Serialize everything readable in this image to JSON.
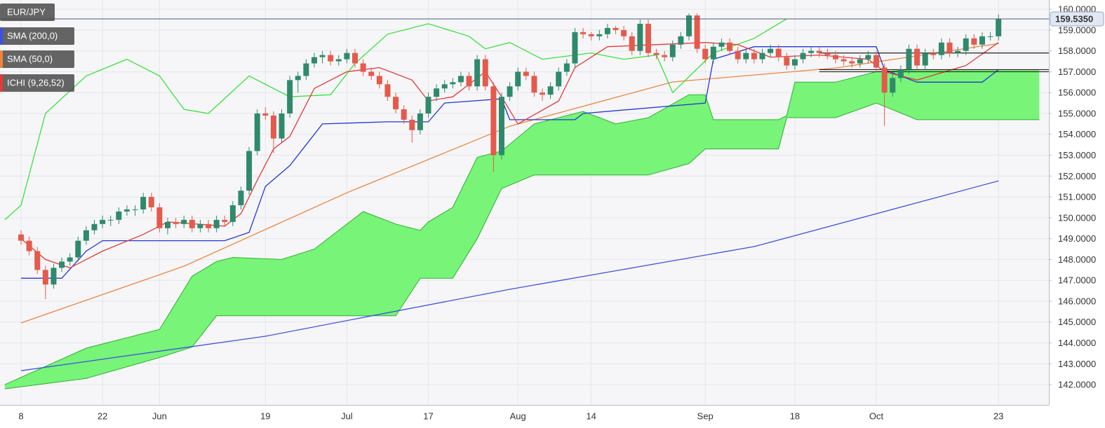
{
  "chart_data": {
    "type": "candlestick",
    "name": "EUR/JPY",
    "up_color": "#2f8a6c",
    "down_color": "#e45a4c",
    "grid": true,
    "ylim": [
      141.03,
      160.44
    ],
    "yticks": [
      {
        "value": 142,
        "label": "142.0000"
      },
      {
        "value": 143,
        "label": "143.0000"
      },
      {
        "value": 144,
        "label": "144.0000"
      },
      {
        "value": 145,
        "label": "145.0000"
      },
      {
        "value": 146,
        "label": "146.0000"
      },
      {
        "value": 147,
        "label": "147.0000"
      },
      {
        "value": 148,
        "label": "148.0000"
      },
      {
        "value": 149,
        "label": "149.0000"
      },
      {
        "value": 150,
        "label": "150.0000"
      },
      {
        "value": 151,
        "label": "151.0000"
      },
      {
        "value": 152,
        "label": "152.0000"
      },
      {
        "value": 153,
        "label": "153.0000"
      },
      {
        "value": 154,
        "label": "154.0000"
      },
      {
        "value": 155,
        "label": "155.0000"
      },
      {
        "value": 156,
        "label": "156.0000"
      },
      {
        "value": 157,
        "label": "157.0000"
      },
      {
        "value": 158,
        "label": "158.0000"
      },
      {
        "value": 159,
        "label": "159.0000"
      },
      {
        "value": 160,
        "label": "160.0000"
      }
    ],
    "last_price_label": "159.5350",
    "categories": [
      "8",
      null,
      null,
      null,
      null,
      null,
      null,
      null,
      null,
      null,
      "22",
      null,
      null,
      null,
      null,
      null,
      null,
      "Jun",
      null,
      null,
      null,
      null,
      null,
      null,
      null,
      null,
      null,
      null,
      null,
      null,
      "19",
      null,
      null,
      null,
      null,
      null,
      null,
      null,
      null,
      null,
      "Jul",
      null,
      null,
      null,
      null,
      null,
      null,
      null,
      null,
      null,
      "17",
      null,
      null,
      null,
      null,
      null,
      null,
      null,
      null,
      null,
      null,
      "Aug",
      null,
      null,
      null,
      null,
      null,
      null,
      null,
      null,
      "14",
      null,
      null,
      null,
      null,
      null,
      null,
      null,
      null,
      null,
      null,
      null,
      null,
      null,
      "Sep",
      null,
      null,
      null,
      null,
      null,
      null,
      null,
      null,
      null,
      null,
      "18",
      null,
      null,
      null,
      null,
      null,
      null,
      null,
      null,
      null,
      "Oct",
      null,
      null,
      null,
      null,
      null,
      null,
      null,
      null,
      null,
      null,
      null,
      null,
      null,
      null,
      "23"
    ],
    "ohlc": [
      [
        149.2,
        149.4,
        148.7,
        148.9
      ],
      [
        148.9,
        149.1,
        148.2,
        148.4
      ],
      [
        148.4,
        148.6,
        147.3,
        147.5
      ],
      [
        147.5,
        147.7,
        146.1,
        146.8
      ],
      [
        146.8,
        147.8,
        146.6,
        147.6
      ],
      [
        147.6,
        148.1,
        147.4,
        147.9
      ],
      [
        147.9,
        148.3,
        147.7,
        148.1
      ],
      [
        148.1,
        149.1,
        147.9,
        148.9
      ],
      [
        148.9,
        149.6,
        148.7,
        149.4
      ],
      [
        149.4,
        149.9,
        149.2,
        149.7
      ],
      [
        149.7,
        150.1,
        149.5,
        149.9
      ],
      [
        149.9,
        150.1,
        149.6,
        149.9
      ],
      [
        149.9,
        150.5,
        149.7,
        150.3
      ],
      [
        150.3,
        150.6,
        150.1,
        150.4
      ],
      [
        150.4,
        150.6,
        150.1,
        150.4
      ],
      [
        150.4,
        151.2,
        150.2,
        151.0
      ],
      [
        151.0,
        151.2,
        150.3,
        150.5
      ],
      [
        150.5,
        150.7,
        149.3,
        149.5
      ],
      [
        149.5,
        150.0,
        149.2,
        149.8
      ],
      [
        149.8,
        150.0,
        149.5,
        149.7
      ],
      [
        149.7,
        150.1,
        149.5,
        149.9
      ],
      [
        149.9,
        150.1,
        149.3,
        149.5
      ],
      [
        149.5,
        149.9,
        149.3,
        149.7
      ],
      [
        149.7,
        149.9,
        149.3,
        149.5
      ],
      [
        149.5,
        150.1,
        149.3,
        149.9
      ],
      [
        149.9,
        150.1,
        149.6,
        149.8
      ],
      [
        149.8,
        150.8,
        149.6,
        150.6
      ],
      [
        150.6,
        151.5,
        150.4,
        151.3
      ],
      [
        151.3,
        153.4,
        151.1,
        153.2
      ],
      [
        153.2,
        155.2,
        153.0,
        155.0
      ],
      [
        155.0,
        155.3,
        154.7,
        154.9
      ],
      [
        154.9,
        155.1,
        153.1,
        153.8
      ],
      [
        153.8,
        155.2,
        153.6,
        155.0
      ],
      [
        155.0,
        156.8,
        154.8,
        156.6
      ],
      [
        156.6,
        157.0,
        156.0,
        156.8
      ],
      [
        156.8,
        157.6,
        156.6,
        157.4
      ],
      [
        157.4,
        157.9,
        157.2,
        157.7
      ],
      [
        157.7,
        158.0,
        157.4,
        157.8
      ],
      [
        157.8,
        158.0,
        157.3,
        157.5
      ],
      [
        157.5,
        157.8,
        157.3,
        157.6
      ],
      [
        157.6,
        158.1,
        157.4,
        157.9
      ],
      [
        157.9,
        158.1,
        157.2,
        157.4
      ],
      [
        157.4,
        157.6,
        156.8,
        157.0
      ],
      [
        157.0,
        157.2,
        156.6,
        156.8
      ],
      [
        156.8,
        157.0,
        156.2,
        156.4
      ],
      [
        156.4,
        156.6,
        155.6,
        155.8
      ],
      [
        155.8,
        156.0,
        155.0,
        155.2
      ],
      [
        155.2,
        155.4,
        154.5,
        154.7
      ],
      [
        154.7,
        154.9,
        153.6,
        154.2
      ],
      [
        154.2,
        155.2,
        154.0,
        155.0
      ],
      [
        155.0,
        156.0,
        154.8,
        155.8
      ],
      [
        155.8,
        156.4,
        155.6,
        156.2
      ],
      [
        156.2,
        156.6,
        156.0,
        156.4
      ],
      [
        156.4,
        156.7,
        156.2,
        156.5
      ],
      [
        156.5,
        157.0,
        156.3,
        156.8
      ],
      [
        156.8,
        157.0,
        156.1,
        156.3
      ],
      [
        156.3,
        157.8,
        156.1,
        157.6
      ],
      [
        157.6,
        157.8,
        156.1,
        156.3
      ],
      [
        156.3,
        156.5,
        152.2,
        153.0
      ],
      [
        153.0,
        156.0,
        152.8,
        155.8
      ],
      [
        155.8,
        156.5,
        155.6,
        156.3
      ],
      [
        156.3,
        157.2,
        156.1,
        157.0
      ],
      [
        157.0,
        157.2,
        156.6,
        156.8
      ],
      [
        156.8,
        157.0,
        155.8,
        156.0
      ],
      [
        156.0,
        156.2,
        155.6,
        155.9
      ],
      [
        155.9,
        156.5,
        155.7,
        156.3
      ],
      [
        156.3,
        157.2,
        156.1,
        157.0
      ],
      [
        157.0,
        157.6,
        156.8,
        157.4
      ],
      [
        157.4,
        159.1,
        157.2,
        158.9
      ],
      [
        158.9,
        159.1,
        158.6,
        158.8
      ],
      [
        158.8,
        158.9,
        158.5,
        158.7
      ],
      [
        158.7,
        159.0,
        158.5,
        158.8
      ],
      [
        158.8,
        159.3,
        158.6,
        159.1
      ],
      [
        159.1,
        159.2,
        158.8,
        159.0
      ],
      [
        159.0,
        159.2,
        158.5,
        158.7
      ],
      [
        158.7,
        158.9,
        157.8,
        158.0
      ],
      [
        158.0,
        159.5,
        157.8,
        159.3
      ],
      [
        159.3,
        159.5,
        157.7,
        157.9
      ],
      [
        157.9,
        158.1,
        157.6,
        157.8
      ],
      [
        157.8,
        158.0,
        157.5,
        157.7
      ],
      [
        157.7,
        158.5,
        157.5,
        158.3
      ],
      [
        158.3,
        158.9,
        158.1,
        158.7
      ],
      [
        158.7,
        159.8,
        158.5,
        159.7
      ],
      [
        159.7,
        159.8,
        157.9,
        158.1
      ],
      [
        158.1,
        158.3,
        157.4,
        157.6
      ],
      [
        157.6,
        158.4,
        157.4,
        158.2
      ],
      [
        158.2,
        158.6,
        158.0,
        158.4
      ],
      [
        158.4,
        158.6,
        157.8,
        158.0
      ],
      [
        158.0,
        158.2,
        157.4,
        157.6
      ],
      [
        157.6,
        158.1,
        157.4,
        157.9
      ],
      [
        157.9,
        158.1,
        157.4,
        157.6
      ],
      [
        157.6,
        158.1,
        157.4,
        157.9
      ],
      [
        157.9,
        158.3,
        157.7,
        158.1
      ],
      [
        158.1,
        158.3,
        157.5,
        157.7
      ],
      [
        157.7,
        157.9,
        157.1,
        157.3
      ],
      [
        157.3,
        157.8,
        157.1,
        157.6
      ],
      [
        157.6,
        158.1,
        157.4,
        157.9
      ],
      [
        157.9,
        158.2,
        157.7,
        158.0
      ],
      [
        158.0,
        158.2,
        157.7,
        157.9
      ],
      [
        157.9,
        158.1,
        157.6,
        157.8
      ],
      [
        157.8,
        158.0,
        157.4,
        157.6
      ],
      [
        157.6,
        157.8,
        157.3,
        157.5
      ],
      [
        157.5,
        157.7,
        157.2,
        157.4
      ],
      [
        157.4,
        157.8,
        157.2,
        157.6
      ],
      [
        157.6,
        158.0,
        157.4,
        157.8
      ],
      [
        157.8,
        158.0,
        157.0,
        157.2
      ],
      [
        157.2,
        157.4,
        154.4,
        156.0
      ],
      [
        156.0,
        156.9,
        155.8,
        156.7
      ],
      [
        156.7,
        157.3,
        156.5,
        157.1
      ],
      [
        157.1,
        158.3,
        156.9,
        158.1
      ],
      [
        158.1,
        158.3,
        157.1,
        157.3
      ],
      [
        157.3,
        158.1,
        157.1,
        157.9
      ],
      [
        157.9,
        158.1,
        157.6,
        157.8
      ],
      [
        157.8,
        158.6,
        157.6,
        158.4
      ],
      [
        158.4,
        158.6,
        157.7,
        157.9
      ],
      [
        157.9,
        158.2,
        157.7,
        158.0
      ],
      [
        158.0,
        158.8,
        157.8,
        158.6
      ],
      [
        158.6,
        158.8,
        158.1,
        158.3
      ],
      [
        158.3,
        158.9,
        158.1,
        158.7
      ],
      [
        158.7,
        158.9,
        158.5,
        158.7
      ],
      [
        158.7,
        159.75,
        158.5,
        159.535
      ]
    ],
    "overlays": [
      {
        "name": "SMA (200,0)",
        "color": "#3d52e3",
        "x": [
          0,
          30,
          60,
          90,
          120
        ],
        "values": [
          142.67,
          144.32,
          146.57,
          148.62,
          151.77
        ]
      },
      {
        "name": "SMA (50,0)",
        "color": "#f0843a",
        "x": [
          0,
          20,
          40,
          60,
          80,
          100,
          120
        ],
        "values": [
          144.96,
          147.68,
          151.2,
          154.39,
          156.51,
          157.18,
          158.35
        ]
      }
    ],
    "ichimoku": {
      "name": "ICHI (9,26,52)",
      "color": "#e53935",
      "tenkan": {
        "color": "#e53935",
        "x": [
          0,
          3,
          6,
          10,
          15,
          18,
          25,
          27,
          29,
          31,
          33,
          36,
          40,
          44,
          48,
          50,
          53,
          57,
          59,
          61,
          66,
          68,
          72,
          78,
          84,
          88,
          92,
          98,
          104,
          106,
          110,
          116,
          120
        ],
        "values": [
          149.0,
          148.0,
          147.6,
          148.4,
          149.2,
          149.8,
          149.6,
          150.2,
          151.8,
          153.3,
          153.9,
          156.2,
          157.0,
          157.2,
          156.6,
          155.6,
          155.8,
          157.0,
          155.8,
          154.5,
          155.6,
          157.2,
          158.2,
          158.3,
          158.4,
          158.3,
          157.7,
          157.8,
          157.6,
          157.0,
          156.6,
          157.3,
          158.4
        ]
      },
      "kijun": {
        "color": "#2436d6",
        "x": [
          0,
          5,
          8,
          10,
          25,
          28,
          30,
          33,
          35,
          37,
          45,
          50,
          52,
          59,
          60,
          68,
          69,
          84,
          85,
          90,
          105,
          106,
          110,
          118,
          120
        ],
        "values": [
          147.1,
          147.1,
          148.4,
          148.9,
          148.9,
          149.3,
          151.5,
          152.5,
          153.5,
          154.5,
          154.6,
          154.6,
          155.5,
          155.7,
          154.7,
          154.7,
          155.0,
          155.5,
          157.6,
          158.2,
          158.2,
          157.1,
          156.5,
          156.5,
          157.1
        ]
      },
      "chikou": {
        "color": "#39e239",
        "x": [
          -2,
          0,
          3,
          8,
          13,
          17,
          20,
          23,
          28,
          33,
          38,
          41,
          45,
          50,
          55,
          57,
          60,
          64,
          70,
          74,
          78,
          80,
          85,
          90,
          94
        ],
        "values": [
          149.9,
          150.6,
          155.0,
          156.8,
          157.6,
          156.8,
          155.2,
          155.0,
          156.8,
          155.8,
          155.9,
          157.4,
          158.8,
          159.3,
          158.7,
          158.1,
          158.4,
          157.6,
          157.9,
          157.6,
          157.8,
          156.0,
          157.9,
          158.6,
          159.535
        ]
      },
      "cloud": {
        "color": "#78f478",
        "line_color": "#30b030",
        "x": [
          -2,
          8,
          17,
          21,
          24,
          26,
          32,
          36,
          42,
          46,
          49,
          50,
          53,
          56,
          59,
          63,
          69,
          73,
          77,
          82,
          84,
          85,
          93,
          94,
          95,
          100,
          105,
          110,
          125
        ],
        "span_a": [
          142.0,
          143.75,
          144.65,
          147.2,
          147.9,
          148.1,
          148.0,
          148.5,
          150.3,
          149.7,
          149.4,
          149.8,
          150.5,
          152.9,
          153.2,
          154.5,
          155.1,
          154.5,
          154.8,
          155.9,
          155.9,
          154.7,
          154.7,
          154.9,
          156.5,
          156.5,
          157.0,
          157.1,
          157.1
        ],
        "span_b": [
          141.8,
          142.3,
          143.3,
          143.8,
          145.3,
          145.3,
          145.3,
          145.3,
          145.3,
          145.3,
          147.1,
          147.1,
          147.1,
          149.0,
          151.4,
          152.05,
          152.05,
          152.05,
          152.05,
          152.6,
          153.3,
          153.3,
          153.3,
          154.8,
          154.8,
          154.8,
          155.5,
          154.7,
          154.7
        ]
      }
    },
    "levels": [
      157.9,
      157.1,
      157.0
    ],
    "levels_start": 98
  }
}
